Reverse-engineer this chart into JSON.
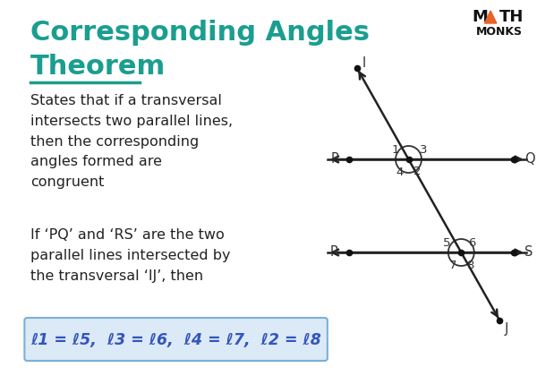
{
  "title_line1": "Corresponding Angles",
  "title_line2": "Theorem",
  "title_color": "#1a9e8f",
  "underline_color": "#1a9e8f",
  "bg_color": "#ffffff",
  "text_color": "#222222",
  "body_text1": "States that if a transversal\nintersects two parallel lines,\nthen the corresponding\nangles formed are\ncongruent",
  "body_text2": "If ‘PQ’ and ‘RS’ are the two\nparallel lines intersected by\nthe transversal ‘IJ’, then",
  "formula_text": "ℓ1 = ℓ5,  ℓ3 = ℓ6,  ℓ4 = ℓ7,  ℓ2 = ℓ8",
  "formula_bg": "#dce9f7",
  "formula_border": "#7ab0d8",
  "logo_triangle_color": "#e8622a",
  "line_color": "#222222",
  "dot_color": "#111111",
  "circle_color": "#333333",
  "number_color": "#333333",
  "label_color": "#333333"
}
